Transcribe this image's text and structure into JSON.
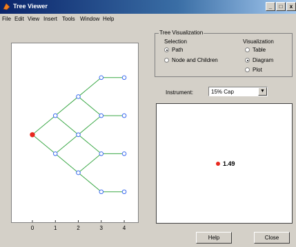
{
  "window": {
    "title": "Tree Viewer",
    "controls": [
      "_",
      "□",
      "x"
    ]
  },
  "menu": [
    "File",
    "Edit",
    "View",
    "Insert",
    "Tools",
    "Window",
    "Help"
  ],
  "tree_visualization": {
    "title": "Tree Visualization",
    "selection_label": "Selection",
    "selection_options": [
      "Path",
      "Node and Children"
    ],
    "selection_selected": "Path",
    "visualization_label": "Visualization",
    "visualization_options": [
      "Table",
      "Diagram",
      "Plot"
    ],
    "visualization_selected": "Diagram"
  },
  "instrument": {
    "label": "Instrument:",
    "value": "15% Cap"
  },
  "selected_value": "1.49",
  "buttons": {
    "help": "Help",
    "close": "Close"
  },
  "colors": {
    "node_outline": "#3c6cf0",
    "edge": "#3aa846",
    "root_node": "#e8281e",
    "selected_dot": "#e8281e"
  },
  "chart_data": {
    "type": "scatter",
    "x_ticks": [
      "0",
      "1",
      "2",
      "3",
      "4"
    ],
    "nodes": [
      {
        "x": 0,
        "y": 0,
        "root": true
      },
      {
        "x": 1,
        "y": 1
      },
      {
        "x": 1,
        "y": -1
      },
      {
        "x": 2,
        "y": 2
      },
      {
        "x": 2,
        "y": 0
      },
      {
        "x": 2,
        "y": -2
      },
      {
        "x": 3,
        "y": 3
      },
      {
        "x": 3,
        "y": 1
      },
      {
        "x": 3,
        "y": -1
      },
      {
        "x": 3,
        "y": -3
      },
      {
        "x": 4,
        "y": 3
      },
      {
        "x": 4,
        "y": 1
      },
      {
        "x": 4,
        "y": -1
      },
      {
        "x": 4,
        "y": -3
      }
    ],
    "edges": [
      [
        0,
        1
      ],
      [
        0,
        2
      ],
      [
        1,
        3
      ],
      [
        1,
        4
      ],
      [
        2,
        4
      ],
      [
        2,
        5
      ],
      [
        3,
        6
      ],
      [
        3,
        7
      ],
      [
        4,
        7
      ],
      [
        4,
        8
      ],
      [
        5,
        8
      ],
      [
        5,
        9
      ],
      [
        6,
        10
      ],
      [
        7,
        11
      ],
      [
        8,
        12
      ],
      [
        9,
        13
      ]
    ],
    "xlim": [
      -0.9,
      4.6
    ],
    "ylim": [
      -4.6,
      4.8
    ],
    "grid": false
  }
}
